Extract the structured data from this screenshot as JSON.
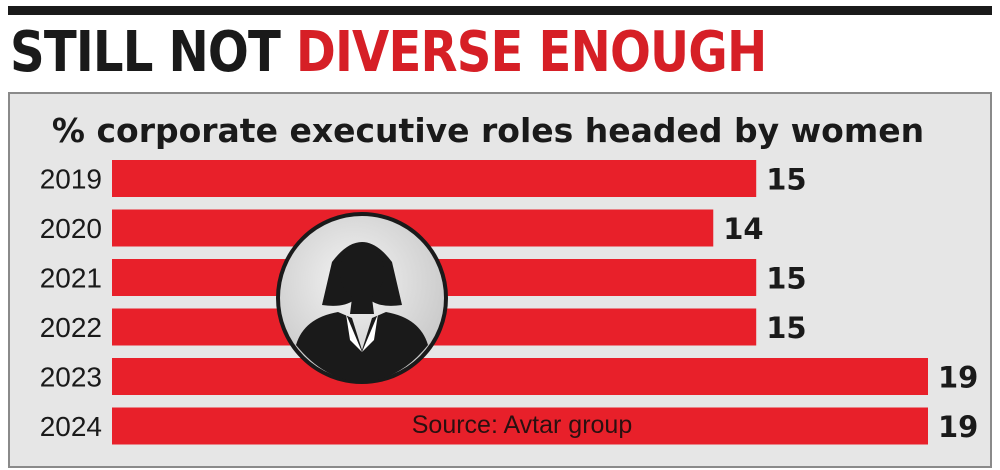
{
  "headline": {
    "part_dark": "STILL NOT",
    "part_red": "DIVERSE ENOUGH"
  },
  "source": "Source: Avtar group",
  "colors": {
    "bar": "#e8202a",
    "headline_red": "#d61f26",
    "panel": "#e6e6e6"
  },
  "chart_data": {
    "type": "bar",
    "orientation": "horizontal",
    "title": "% corporate executive roles headed by women",
    "categories": [
      "2019",
      "2020",
      "2021",
      "2022",
      "2023",
      "2024"
    ],
    "values": [
      15,
      14,
      15,
      15,
      19,
      19
    ],
    "xlim": [
      0,
      19
    ],
    "grid": false,
    "legend": "none"
  }
}
